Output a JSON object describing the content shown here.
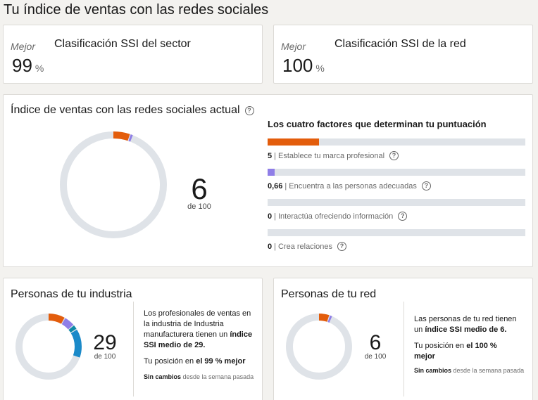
{
  "page_title": "Tu índice de ventas con las redes sociales",
  "sector_rank": {
    "mejor": "Mejor",
    "title": "Clasificación SSI del sector",
    "value": "99",
    "unit": "%"
  },
  "network_rank": {
    "mejor": "Mejor",
    "title": "Clasificación SSI de la red",
    "value": "100",
    "unit": "%"
  },
  "current": {
    "title": "Índice de ventas con las redes sociales actual",
    "score": "6",
    "score_sub": "de 100",
    "factors_title": "Los cuatro factores que determinan tu puntuación",
    "factors": [
      {
        "value": "5",
        "label": "Establece tu marca profesional",
        "level": 0.2,
        "color": "#e35d0c"
      },
      {
        "value": "0,66",
        "label": "Encuentra a las personas adecuadas",
        "level": 0.0264,
        "color": "#8f7ee7"
      },
      {
        "value": "0",
        "label": "Interactúa ofreciendo información",
        "level": 0,
        "color": "#0e8aa8"
      },
      {
        "value": "0",
        "label": "Crea relaciones",
        "level": 0,
        "color": "#2b6cb0"
      }
    ]
  },
  "industry": {
    "title": "Personas de tu industria",
    "score": "29",
    "score_sub": "de 100",
    "desc_line1": "Los profesionales de ventas en la industria de Industria manufacturera tienen un",
    "desc_bold": "índice SSI medio de 29.",
    "pos_prefix": "Tu posición en",
    "pos_bold": "el 99 % mejor",
    "note_bold": "Sin cambios",
    "note_rest": "desde la semana pasada"
  },
  "network": {
    "title": "Personas de tu red",
    "score": "6",
    "score_sub": "de 100",
    "desc_line1": "Las personas de tu red tienen un",
    "desc_bold": "índice SSI medio de 6.",
    "pos_prefix": "Tu posición en",
    "pos_bold1": "el",
    "pos_bold2": "100 % mejor",
    "note_bold": "Sin cambios",
    "note_rest": "desde la semana pasada"
  },
  "colors": {
    "brand_orange": "#e35d0c",
    "purple": "#8f7ee7",
    "teal": "#0e8aa8",
    "blue": "#1b8ac9",
    "track": "#dfe3e8"
  }
}
